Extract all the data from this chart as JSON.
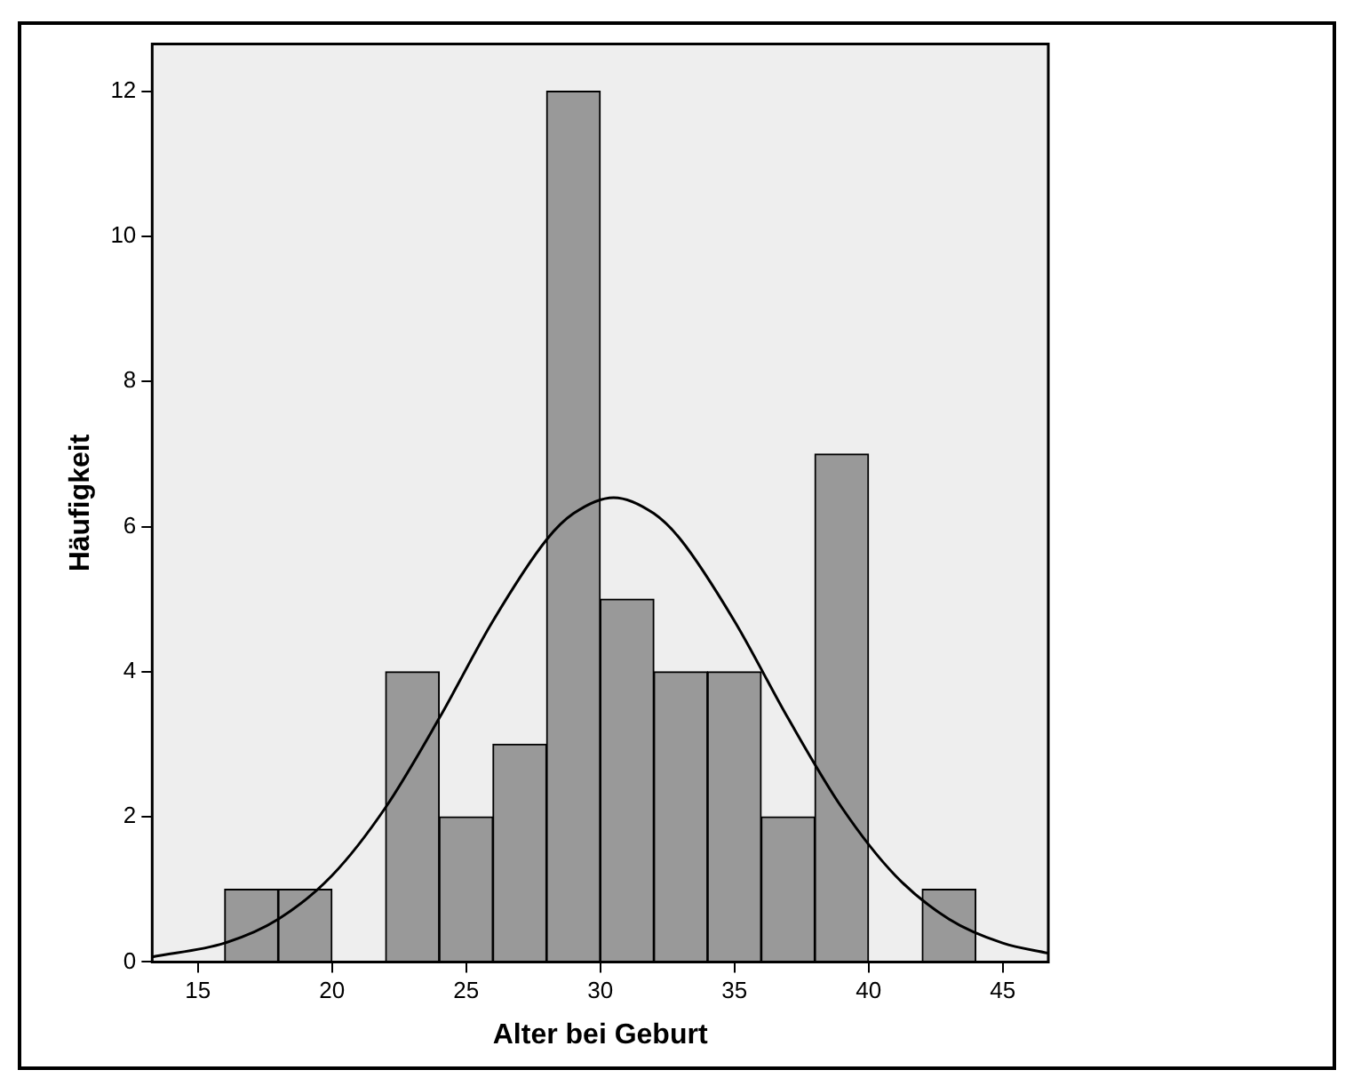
{
  "chart_data": {
    "type": "histogram",
    "xlabel": "Alter bei Geburt",
    "ylabel": "Häufigkeit",
    "bins": [
      16,
      18,
      20,
      22,
      24,
      26,
      28,
      30,
      32,
      34,
      36,
      38,
      40,
      42,
      44
    ],
    "values": [
      1,
      1,
      0,
      4,
      2,
      3,
      12,
      5,
      4,
      4,
      2,
      7,
      0,
      1
    ],
    "color": "#999999",
    "series": [
      {
        "type": "line",
        "color": "#000000",
        "x": [
          13.3,
          16,
          18,
          20,
          22,
          24,
          26,
          28,
          29,
          30.5,
          32,
          33,
          35,
          37,
          39,
          41,
          43,
          45,
          46.7
        ],
        "values": [
          0.07,
          0.26,
          0.59,
          1.19,
          2.13,
          3.36,
          4.7,
          5.82,
          6.18,
          6.4,
          6.18,
          5.82,
          4.7,
          3.36,
          2.13,
          1.19,
          0.59,
          0.26,
          0.12
        ]
      }
    ],
    "xlim": [
      13.3,
      46.7
    ],
    "xticks": [
      15,
      20,
      25,
      30,
      35,
      40,
      45
    ],
    "ylim": [
      0,
      12.65
    ],
    "yticks": [
      0,
      2,
      4,
      6,
      8,
      10,
      12
    ],
    "grid": false,
    "legend": false,
    "marker": "none",
    "line_style": "solid"
  }
}
